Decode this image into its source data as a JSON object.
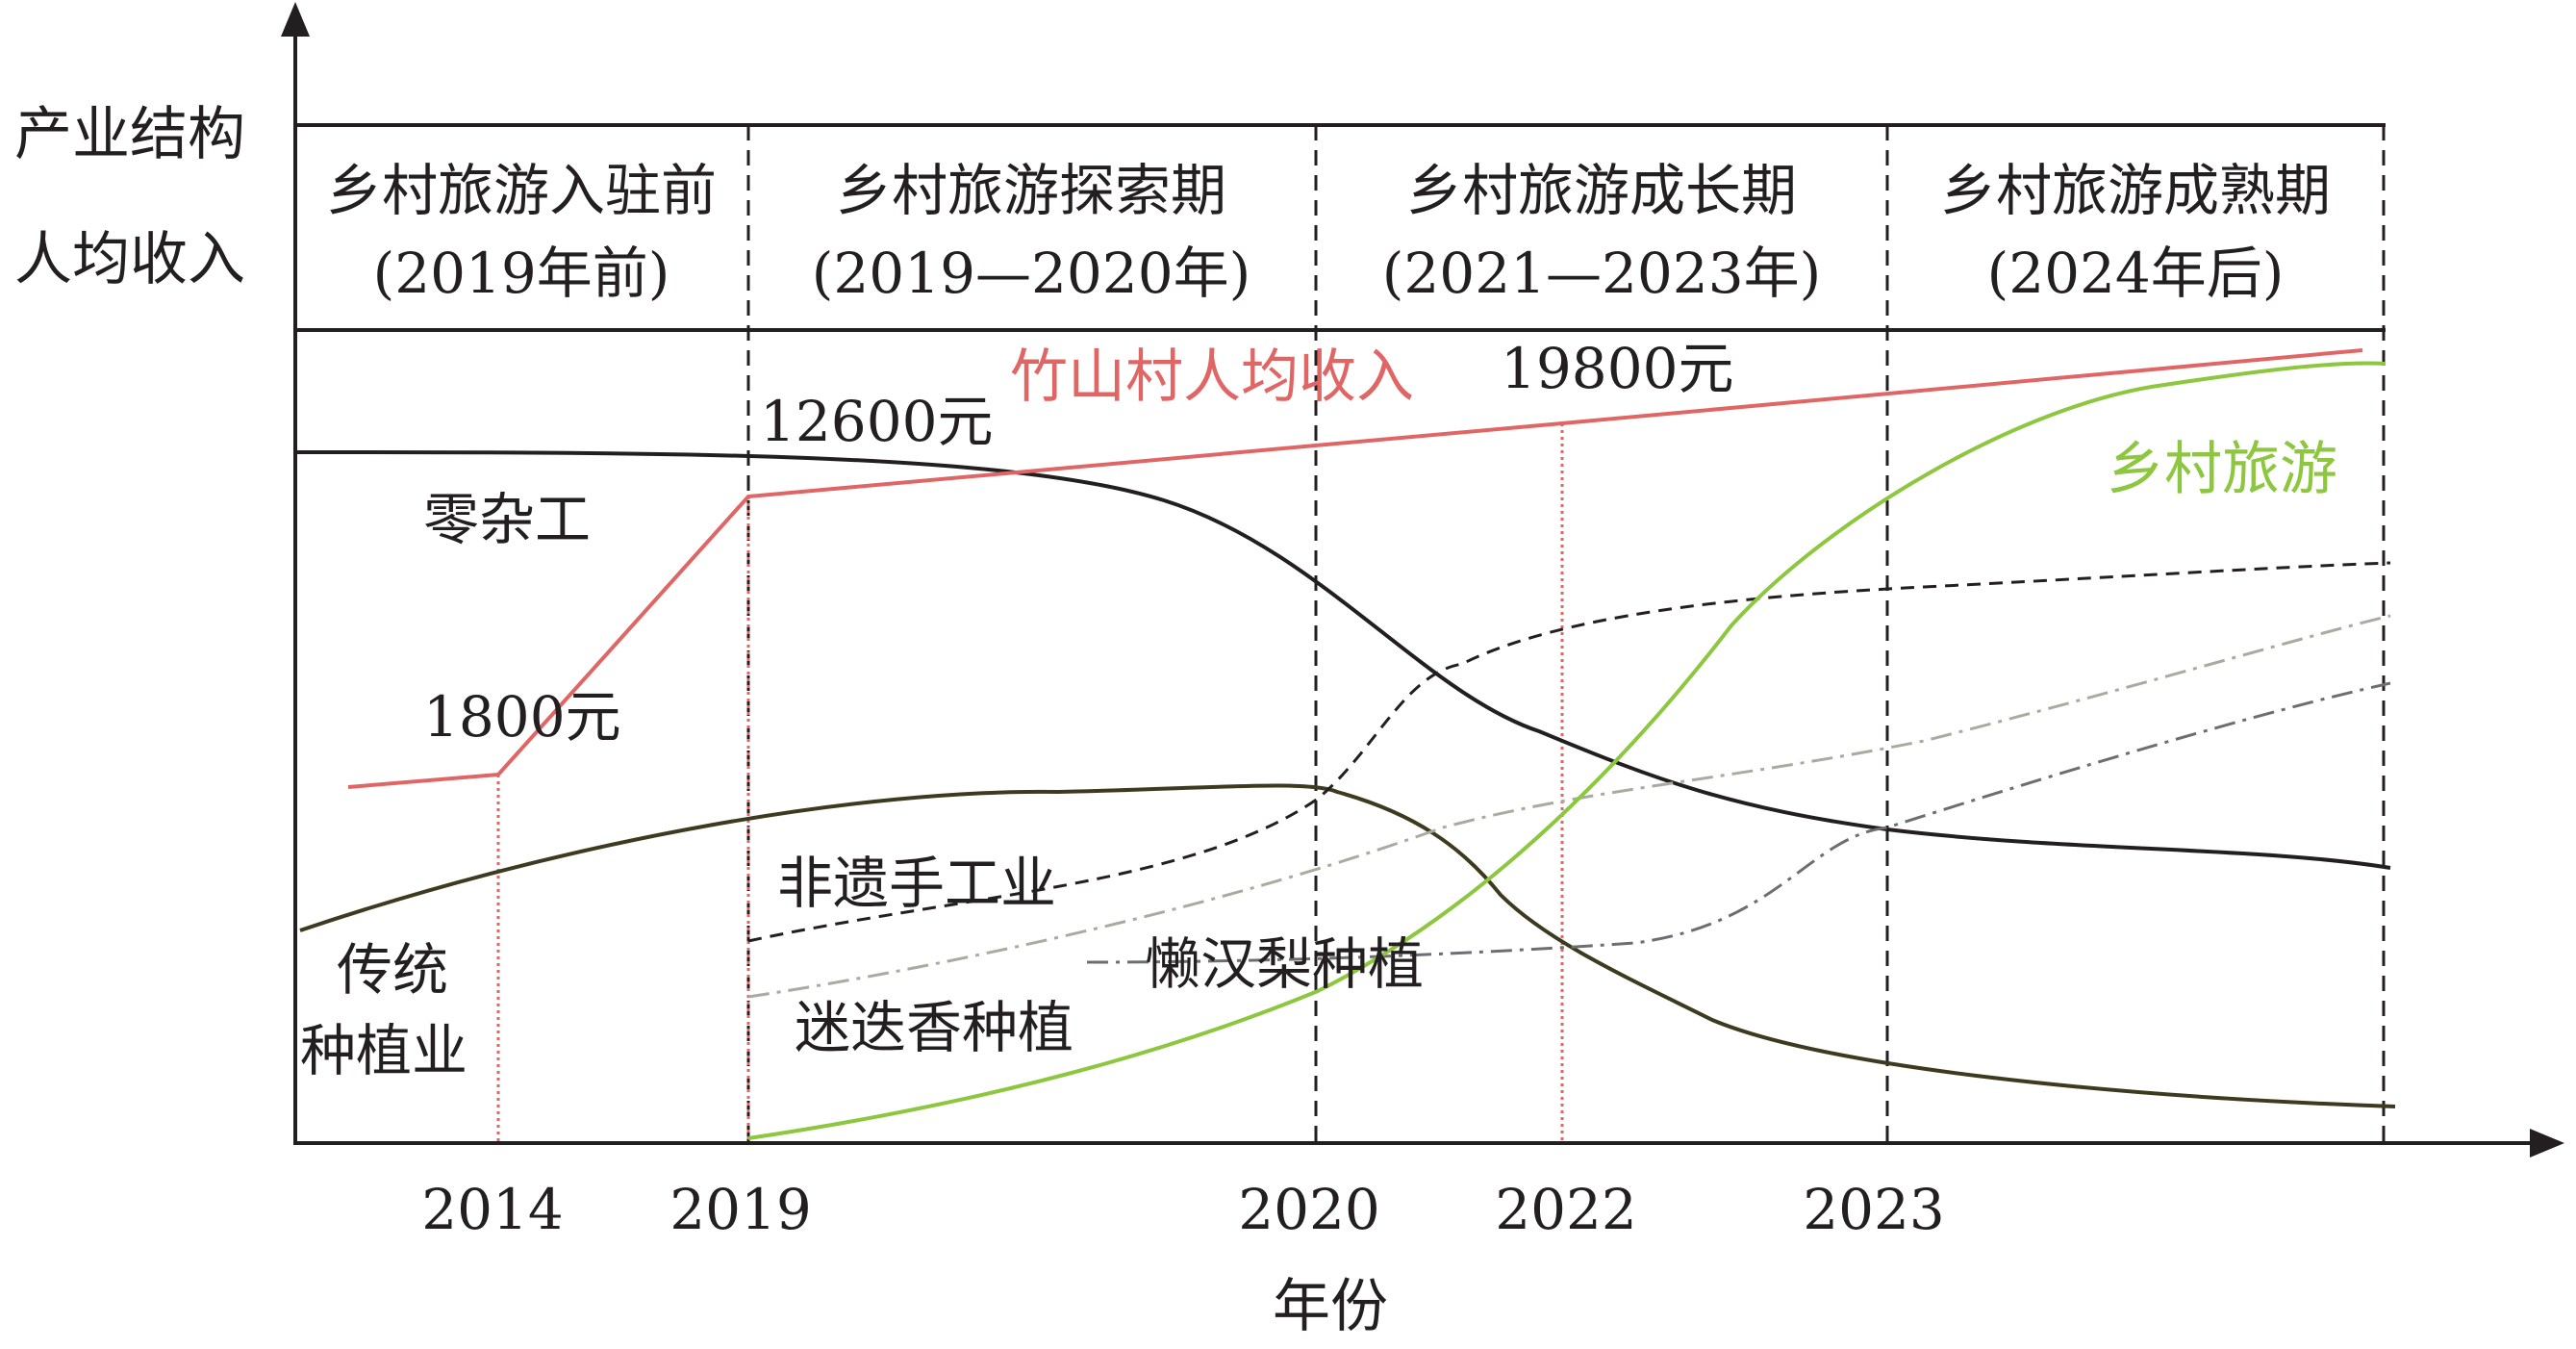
{
  "axes": {
    "y_label_line1": "产业结构",
    "y_label_line2": "人均收入",
    "x_label": "年份",
    "x_ticks": [
      "2014",
      "2019",
      "2020",
      "2022",
      "2023"
    ]
  },
  "stages": [
    {
      "name": "乡村旅游入驻前",
      "period": "(2019年前)"
    },
    {
      "name": "乡村旅游探索期",
      "period": "(2019—2020年)"
    },
    {
      "name": "乡村旅游成长期",
      "period": "(2021—2023年)"
    },
    {
      "name": "乡村旅游成熟期",
      "period": "(2024年后)"
    }
  ],
  "income": {
    "label": "竹山村人均收入",
    "color": "#e06666",
    "points": [
      {
        "label": "1800元",
        "year": "2014",
        "value": 1800
      },
      {
        "label": "12600元",
        "year": "2019",
        "value": 12600
      },
      {
        "label": "19800元",
        "year": "2022",
        "value": 19800
      }
    ]
  },
  "industries": [
    {
      "key": "odd_jobs",
      "label": "零杂工",
      "color": "#231f20",
      "style": "solid",
      "trend": "high, declining after 2020"
    },
    {
      "key": "traditional_farming",
      "label_line1": "传统",
      "label_line2": "种植业",
      "color": "#3d3a20",
      "style": "solid",
      "trend": "rises to 2020 peak then declines"
    },
    {
      "key": "intangible_crafts",
      "label": "非遗手工业",
      "color": "#231f20",
      "style": "dashed",
      "trend": "rises steadily"
    },
    {
      "key": "rosemary",
      "label": "迷迭香种植",
      "color": "#a8aca0",
      "style": "dash-dot",
      "trend": "rises steadily"
    },
    {
      "key": "lazy_pear",
      "label": "懒汉梨种植",
      "color": "#6d6e71",
      "style": "dash-dot",
      "trend": "rises after 2022"
    },
    {
      "key": "rural_tourism",
      "label": "乡村旅游",
      "color": "#8dc63f",
      "style": "solid",
      "trend": "S-curve growth from 2019"
    }
  ]
}
